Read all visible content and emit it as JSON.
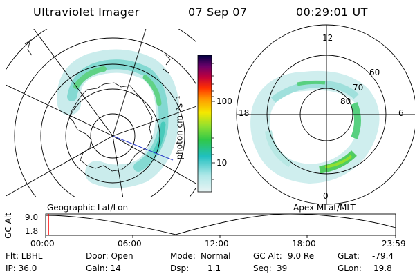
{
  "header": {
    "title": "Ultraviolet Imager",
    "date": "07 Sep 07",
    "time": "00:29:01 UT"
  },
  "geo_panel": {
    "label": "Geographic Lat/Lon"
  },
  "mag_panel": {
    "label": "Apex MLat/MLT",
    "mlt_labels": [
      "12",
      "18",
      "6",
      "0"
    ],
    "lat_labels": [
      "60",
      "70",
      "80"
    ]
  },
  "colorbar": {
    "unit_label": "photon cm⁻²s⁻¹",
    "ticks": [
      "100",
      "10"
    ],
    "scale": "log",
    "colors": [
      "#000040",
      "#6a006a",
      "#c0003c",
      "#ff3000",
      "#ff9800",
      "#f5e800",
      "#90e030",
      "#30c848",
      "#20c0c0",
      "#b0e8e8",
      "#e8f4f4"
    ]
  },
  "altitude_plot": {
    "ylabel": "GC Alt",
    "yticks": [
      "9.0",
      "1.8"
    ],
    "xticks": [
      "00:00",
      "06:00",
      "12:00",
      "18:00",
      "23:59"
    ],
    "current_marker_time": "00:29",
    "marker_color": "#ff0000"
  },
  "info": {
    "row1": {
      "flt": "Flt: LBHL",
      "door": "Door: Open",
      "mode_label": "Mode:",
      "mode_value": "Normal",
      "gcalt_label": "GC Alt:",
      "gcalt_value": "9.0 Re",
      "glat_label": "GLat:",
      "glat_value": "-79.4"
    },
    "row2": {
      "ip": "IP: 36.0",
      "gain": "Gain: 14",
      "dsp_label": "Dsp:",
      "dsp_value": "1.1",
      "seq_label": "Seq:",
      "seq_value": "39",
      "glon_label": "GLon:",
      "glon_value": "19.8"
    }
  }
}
